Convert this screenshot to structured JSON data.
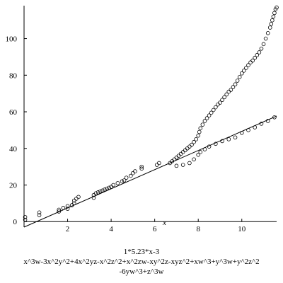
{
  "chart_data": {
    "type": "scatter",
    "xlabel": "x",
    "ylabel": "",
    "xlim": [
      0,
      11.6
    ],
    "ylim": [
      -3,
      118
    ],
    "x_ticks": [
      2,
      4,
      6,
      8,
      10
    ],
    "y_ticks": [
      0,
      20,
      40,
      60,
      80,
      100
    ],
    "grid": false,
    "caption_lines": [
      "1*5.23*x-3",
      "x^3w-3x^2y^2+4x^2yz-x^2z^2+x^2zw-xy^2z-xyz^2+xw^3+y^3w+y^2z^2",
      "-6yw^3+z^3w"
    ],
    "fit_line": {
      "label": "",
      "points": [
        [
          0,
          -3
        ],
        [
          11.6,
          57.7
        ]
      ]
    },
    "series": [
      {
        "points": [
          [
            0.05,
            1
          ],
          [
            0.05,
            2.5
          ],
          [
            0.7,
            3.5
          ],
          [
            0.7,
            5
          ],
          [
            1.6,
            5.5
          ],
          [
            1.6,
            6.5
          ],
          [
            1.8,
            7.5
          ],
          [
            2.0,
            7
          ],
          [
            2.0,
            8.5
          ],
          [
            2.2,
            9
          ],
          [
            2.3,
            10
          ],
          [
            2.3,
            11.5
          ],
          [
            2.4,
            12.5
          ],
          [
            2.5,
            13.5
          ],
          [
            3.2,
            13
          ],
          [
            3.2,
            14.5
          ],
          [
            3.3,
            15.5
          ],
          [
            3.4,
            16
          ],
          [
            3.5,
            16.5
          ],
          [
            3.6,
            17
          ],
          [
            3.7,
            17.5
          ],
          [
            3.8,
            18
          ],
          [
            3.9,
            18.5
          ],
          [
            4.0,
            19
          ],
          [
            4.1,
            20
          ],
          [
            4.3,
            21
          ],
          [
            4.5,
            22
          ],
          [
            4.6,
            22.5
          ],
          [
            4.7,
            24
          ],
          [
            4.9,
            25
          ],
          [
            5.0,
            26.5
          ],
          [
            5.1,
            27.5
          ],
          [
            5.4,
            29
          ],
          [
            5.4,
            30
          ],
          [
            6.1,
            31
          ],
          [
            6.2,
            32
          ],
          [
            6.7,
            32
          ],
          [
            6.8,
            33
          ],
          [
            6.9,
            34
          ],
          [
            7.0,
            35
          ],
          [
            7.1,
            36
          ],
          [
            7.2,
            37
          ],
          [
            7.3,
            38
          ],
          [
            7.4,
            39
          ],
          [
            7.5,
            40
          ],
          [
            7.6,
            41
          ],
          [
            7.7,
            42
          ],
          [
            7.8,
            43.5
          ],
          [
            7.9,
            45
          ],
          [
            8.0,
            47
          ],
          [
            8.05,
            49
          ],
          [
            8.1,
            51
          ],
          [
            8.2,
            53
          ],
          [
            8.3,
            55
          ],
          [
            8.4,
            56.5
          ],
          [
            8.5,
            58
          ],
          [
            8.6,
            59.5
          ],
          [
            8.7,
            61
          ],
          [
            8.8,
            62.5
          ],
          [
            8.9,
            64
          ],
          [
            9.0,
            65
          ],
          [
            9.1,
            66.5
          ],
          [
            9.2,
            68
          ],
          [
            9.3,
            69.5
          ],
          [
            9.4,
            71
          ],
          [
            9.5,
            72
          ],
          [
            9.6,
            73.5
          ],
          [
            9.7,
            75
          ],
          [
            9.8,
            77
          ],
          [
            9.9,
            79
          ],
          [
            10.0,
            81
          ],
          [
            10.1,
            82.5
          ],
          [
            10.2,
            84
          ],
          [
            10.3,
            85.5
          ],
          [
            10.4,
            87
          ],
          [
            10.5,
            88
          ],
          [
            10.6,
            89.5
          ],
          [
            10.7,
            91
          ],
          [
            10.8,
            92.5
          ],
          [
            10.9,
            94.5
          ],
          [
            11.0,
            97
          ],
          [
            11.1,
            100
          ],
          [
            11.2,
            103
          ],
          [
            11.3,
            106
          ],
          [
            11.35,
            108
          ],
          [
            11.4,
            110
          ],
          [
            11.45,
            112
          ],
          [
            11.5,
            114
          ],
          [
            11.55,
            116
          ],
          [
            11.6,
            117
          ],
          [
            7.0,
            30.5
          ],
          [
            7.3,
            31
          ],
          [
            7.6,
            32
          ],
          [
            7.8,
            34
          ],
          [
            8.0,
            36.5
          ],
          [
            8.1,
            38
          ],
          [
            8.3,
            39.5
          ],
          [
            8.5,
            41
          ],
          [
            8.8,
            42.5
          ],
          [
            9.1,
            44
          ],
          [
            9.4,
            45
          ],
          [
            9.7,
            46
          ],
          [
            10.0,
            48.5
          ],
          [
            10.3,
            50
          ],
          [
            10.6,
            51.5
          ],
          [
            10.9,
            53.5
          ],
          [
            11.2,
            55
          ],
          [
            11.5,
            57
          ]
        ]
      }
    ]
  }
}
